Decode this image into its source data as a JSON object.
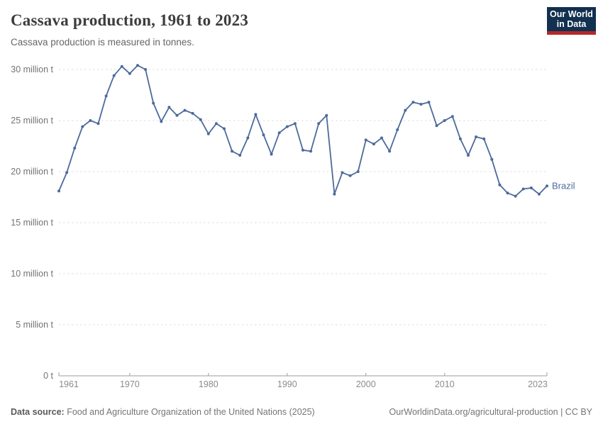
{
  "header": {
    "title": "Cassava production, 1961 to 2023",
    "subtitle": "Cassava production is measured in tonnes."
  },
  "logo": {
    "line1": "Our World",
    "line2": "in Data"
  },
  "footer": {
    "source_label": "Data source:",
    "source_text": " Food and Agriculture Organization of the United Nations (2025)",
    "credit": "OurWorldinData.org/agricultural-production | CC BY"
  },
  "colors": {
    "line": "#4C6A9C",
    "gridline": "#dedede",
    "axis": "#9e9e9e",
    "axis_text": "#737373",
    "tick_text": "#8c8c8c",
    "logo_bg": "#12304f",
    "logo_accent": "#b5292a"
  },
  "chart_data": {
    "type": "line",
    "title": "Cassava production, 1961 to 2023",
    "subtitle": "Cassava production is measured in tonnes.",
    "xlabel": "",
    "ylabel": "",
    "unit": "million tonnes",
    "grid": "horizontal dashed",
    "legend_position": "end-of-line label",
    "x_domain": [
      1961,
      2023
    ],
    "y_domain": [
      0,
      30
    ],
    "y_ticks": [
      {
        "value": 0,
        "label": "0 t"
      },
      {
        "value": 5,
        "label": "5 million t"
      },
      {
        "value": 10,
        "label": "10 million t"
      },
      {
        "value": 15,
        "label": "15 million t"
      },
      {
        "value": 20,
        "label": "20 million t"
      },
      {
        "value": 25,
        "label": "25 million t"
      },
      {
        "value": 30,
        "label": "30 million t"
      }
    ],
    "x_ticks": [
      {
        "value": 1961,
        "label": "1961"
      },
      {
        "value": 1970,
        "label": "1970"
      },
      {
        "value": 1980,
        "label": "1980"
      },
      {
        "value": 1990,
        "label": "1990"
      },
      {
        "value": 2000,
        "label": "2000"
      },
      {
        "value": 2010,
        "label": "2010"
      },
      {
        "value": 2023,
        "label": "2023"
      }
    ],
    "series": [
      {
        "name": "Brazil",
        "color": "#4C6A9C",
        "x": [
          1961,
          1962,
          1963,
          1964,
          1965,
          1966,
          1967,
          1968,
          1969,
          1970,
          1971,
          1972,
          1973,
          1974,
          1975,
          1976,
          1977,
          1978,
          1979,
          1980,
          1981,
          1982,
          1983,
          1984,
          1985,
          1986,
          1987,
          1988,
          1989,
          1990,
          1991,
          1992,
          1993,
          1994,
          1995,
          1996,
          1997,
          1998,
          1999,
          2000,
          2001,
          2002,
          2003,
          2004,
          2005,
          2006,
          2007,
          2008,
          2009,
          2010,
          2011,
          2012,
          2013,
          2014,
          2015,
          2016,
          2017,
          2018,
          2019,
          2020,
          2021,
          2022,
          2023
        ],
        "values": [
          18.1,
          19.9,
          22.3,
          24.4,
          25.0,
          24.7,
          27.4,
          29.4,
          30.3,
          29.6,
          30.4,
          30.0,
          26.7,
          24.9,
          26.3,
          25.5,
          26.0,
          25.7,
          25.1,
          23.7,
          24.7,
          24.2,
          22.0,
          21.6,
          23.3,
          25.6,
          23.6,
          21.7,
          23.8,
          24.4,
          24.7,
          22.1,
          22.0,
          24.7,
          25.5,
          17.8,
          19.9,
          19.6,
          20.0,
          23.1,
          22.7,
          23.3,
          22.0,
          24.1,
          26.0,
          26.8,
          26.6,
          26.8,
          24.5,
          25.0,
          25.4,
          23.2,
          21.6,
          23.4,
          23.2,
          21.2,
          18.7,
          17.9,
          17.6,
          18.3,
          18.4,
          17.8,
          18.6
        ]
      }
    ]
  }
}
